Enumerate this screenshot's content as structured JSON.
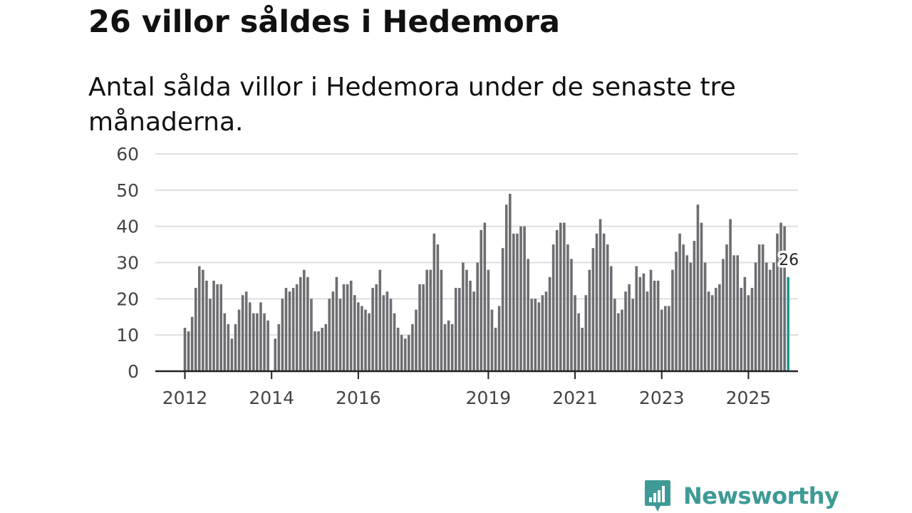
{
  "title": "26 villor såldes i Hedemora",
  "subtitle": "Antal sålda villor i Hedemora under de senaste tre månaderna.",
  "brand": {
    "name": "Newsworthy",
    "icon": "bar-chart-speech-bubble-icon",
    "color": "#3f9a96"
  },
  "chart_data": {
    "type": "bar",
    "title": "26 villor såldes i Hedemora",
    "xlabel": "",
    "ylabel": "",
    "ylim": [
      0,
      60
    ],
    "y_ticks": [
      0,
      10,
      20,
      30,
      40,
      50,
      60
    ],
    "x_tick_labels": [
      "2012",
      "2014",
      "2016",
      "2019",
      "2021",
      "2023",
      "2025"
    ],
    "grid": true,
    "bar_color": "#6d6d72",
    "highlight_color": "#1a9a94",
    "highlight_label": "26",
    "values": [
      12,
      11,
      15,
      23,
      29,
      28,
      25,
      20,
      25,
      24,
      24,
      16,
      13,
      9,
      13,
      17,
      21,
      22,
      19,
      16,
      16,
      19,
      16,
      14,
      0,
      9,
      13,
      20,
      23,
      22,
      23,
      24,
      26,
      28,
      26,
      20,
      11,
      11,
      12,
      13,
      20,
      22,
      26,
      20,
      24,
      24,
      25,
      21,
      19,
      18,
      17,
      16,
      23,
      24,
      28,
      21,
      22,
      20,
      16,
      12,
      10,
      9,
      10,
      13,
      17,
      24,
      24,
      28,
      28,
      38,
      35,
      28,
      13,
      14,
      13,
      23,
      23,
      30,
      28,
      25,
      22,
      30,
      39,
      41,
      28,
      17,
      12,
      18,
      34,
      46,
      49,
      38,
      38,
      40,
      40,
      31,
      20,
      20,
      19,
      21,
      22,
      26,
      35,
      39,
      41,
      41,
      35,
      31,
      21,
      16,
      12,
      21,
      28,
      34,
      38,
      42,
      38,
      35,
      29,
      20,
      16,
      17,
      22,
      24,
      20,
      29,
      26,
      27,
      22,
      28,
      25,
      25,
      17,
      18,
      18,
      28,
      33,
      38,
      35,
      32,
      30,
      36,
      46,
      41,
      30,
      22,
      21,
      23,
      24,
      31,
      35,
      42,
      32,
      32,
      23,
      26,
      21,
      23,
      30,
      35,
      35,
      30,
      28,
      30,
      38,
      41,
      40,
      26
    ]
  }
}
